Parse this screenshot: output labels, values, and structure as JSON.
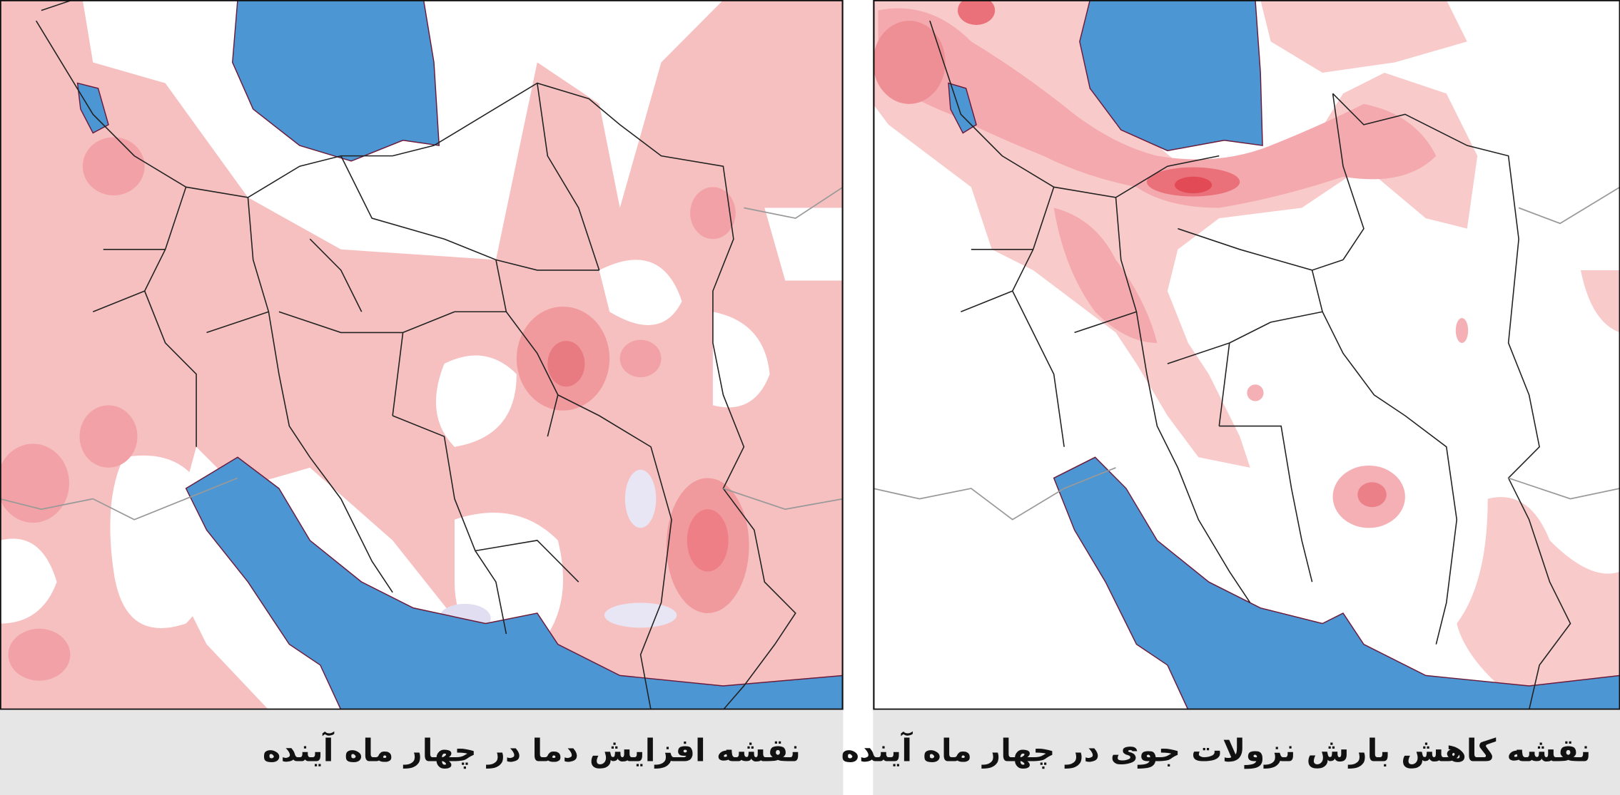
{
  "panels": [
    {
      "caption": "نقشه افزایش دما در چهار ماه آینده"
    },
    {
      "caption": "نقشه کاهش بارش نزولات جوی در چهار ماه آینده"
    }
  ]
}
